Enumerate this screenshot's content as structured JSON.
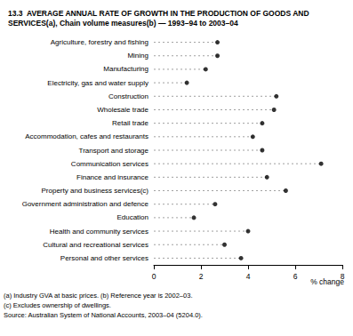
{
  "chart_data": {
    "type": "dot",
    "orientation": "horizontal",
    "title": "13.3  AVERAGE ANNUAL RATE OF GROWTH IN THE PRODUCTION OF GOODS AND SERVICES(a), Chain volume measures(b) — 1993–94 to 2003–04",
    "x_label": "% change",
    "categories": [
      "Agriculture, forestry and fishing",
      "Mining",
      "Manufacturing",
      "Electricity, gas and water supply",
      "Construction",
      "Wholesale trade",
      "Retail trade",
      "Accommodation, cafes and restaurants",
      "Transport and storage",
      "Communication services",
      "Finance and insurance",
      "Property and business services(c)",
      "Government administration and defence",
      "Education",
      "Health and community services",
      "Cultural and recreational services",
      "Personal and other services"
    ],
    "values": [
      2.7,
      2.7,
      2.2,
      1.4,
      5.2,
      5.1,
      4.6,
      4.2,
      4.6,
      7.1,
      4.8,
      5.6,
      2.6,
      1.7,
      4.0,
      3.0,
      3.7
    ],
    "color": "#000000",
    "xlim": [
      0,
      8
    ],
    "xticks": [
      0,
      2,
      4,
      6,
      8
    ],
    "grid": false,
    "line_style": "dashed",
    "annotations": [
      "(a) Industry GVA at basic prices. (b) Reference year is 2002–03.",
      "(c) Excludes ownership of dwellings.",
      "Source: Australian System of National Accounts, 2003–04 (5204.0)."
    ]
  }
}
